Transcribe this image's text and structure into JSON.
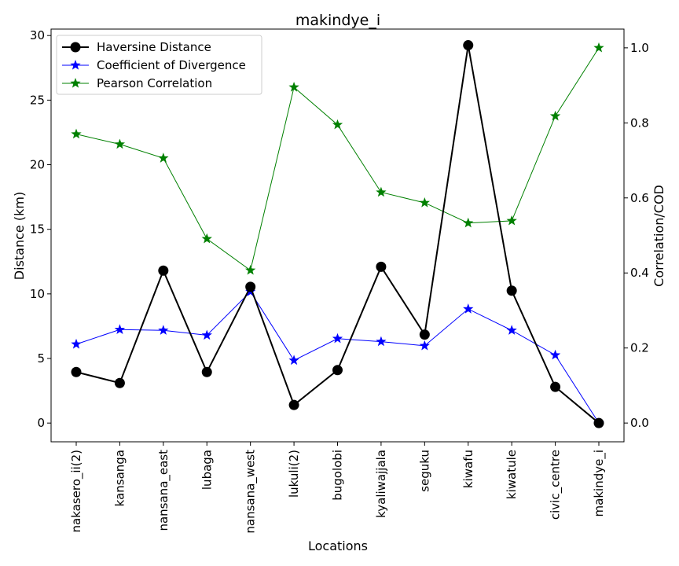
{
  "chart_data": {
    "type": "line",
    "title": "makindye_i",
    "xlabel": "Locations",
    "ylabel_left": "Distance (km)",
    "ylabel_right": "Correlation/COD",
    "categories": [
      "nakasero_ii(2)",
      "kansanga",
      "nansana_east",
      "lubaga",
      "nansana_west",
      "lukuli(2)",
      "bugolobi",
      "kyaliwajjala",
      "seguku",
      "kiwafu",
      "kiwatule",
      "civic_centre",
      "makindye_i"
    ],
    "ylim_left": [
      -1.45,
      30.5
    ],
    "ylim_right": [
      -0.05,
      1.05
    ],
    "yticks_left": [
      0,
      5,
      10,
      15,
      20,
      25,
      30
    ],
    "yticks_right": [
      "0.0",
      "0.2",
      "0.4",
      "0.6",
      "0.8",
      "1.0"
    ],
    "grid": false,
    "legend_position": "upper-left",
    "series": [
      {
        "name": "Haversine Distance",
        "axis": "left",
        "color": "#000000",
        "marker": "circle",
        "values": [
          3.95,
          3.1,
          11.8,
          3.95,
          10.55,
          1.4,
          4.1,
          12.1,
          6.85,
          29.25,
          10.25,
          2.8,
          0.0
        ]
      },
      {
        "name": "Coefficient of Divergence",
        "axis": "right",
        "color": "#0000ff",
        "marker": "star",
        "values": [
          0.21,
          0.249,
          0.247,
          0.234,
          0.35,
          0.167,
          0.225,
          0.217,
          0.206,
          0.304,
          0.247,
          0.181,
          0.0
        ]
      },
      {
        "name": "Pearson Correlation",
        "axis": "right",
        "color": "#008000",
        "marker": "star",
        "values": [
          0.77,
          0.743,
          0.706,
          0.491,
          0.407,
          0.895,
          0.795,
          0.615,
          0.587,
          0.533,
          0.539,
          0.818,
          1.0
        ]
      }
    ]
  }
}
